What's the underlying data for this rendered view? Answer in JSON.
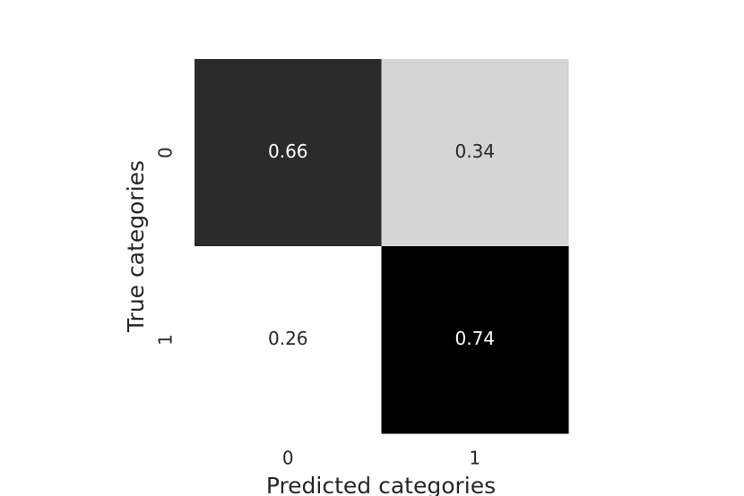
{
  "chart_data": {
    "type": "heatmap",
    "x_label": "Predicted categories",
    "y_label": "True categories",
    "x_categories": [
      "0",
      "1"
    ],
    "y_categories": [
      "0",
      "1"
    ],
    "values": [
      [
        0.66,
        0.34
      ],
      [
        0.26,
        0.74
      ]
    ],
    "colormap": [
      "#ffffff",
      "#000000"
    ]
  }
}
